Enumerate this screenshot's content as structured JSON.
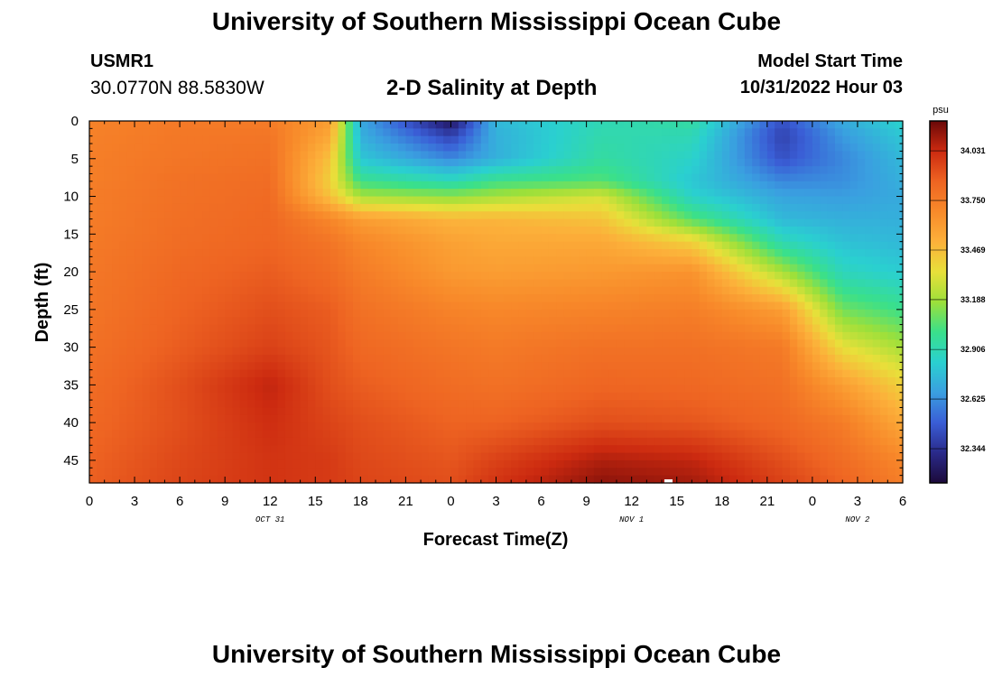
{
  "header": {
    "title": "University of Southern Mississippi Ocean Cube",
    "station": "USMR1",
    "coords": "30.0770N  88.5830W",
    "subtitle": "2-D Salinity at Depth",
    "start_label": "Model Start Time",
    "start_value": "10/31/2022 Hour 03"
  },
  "footer": {
    "title": "University of Southern Mississippi Ocean Cube"
  },
  "chart_data": {
    "type": "heatmap",
    "title": "2-D Salinity at Depth",
    "xlabel": "Forecast Time(Z)",
    "ylabel": "Depth (ft)",
    "x_tick_labels": [
      "0",
      "3",
      "6",
      "9",
      "12",
      "15",
      "18",
      "21",
      "0",
      "3",
      "6",
      "9",
      "12",
      "15",
      "18",
      "21",
      "0",
      "3",
      "6"
    ],
    "x_range_hours": [
      0,
      54
    ],
    "date_labels": [
      {
        "text": "OCT 31",
        "hour": 12
      },
      {
        "text": "NOV 1",
        "hour": 36
      },
      {
        "text": "NOV 2",
        "hour": 51
      }
    ],
    "y_ticks": [
      0,
      5,
      10,
      15,
      20,
      25,
      30,
      35,
      40,
      45
    ],
    "y_range": [
      0,
      48
    ],
    "y_inverted": true,
    "colorbar": {
      "unit": "psu",
      "ticks": [
        "34.031",
        "33.750",
        "33.469",
        "33.188",
        "32.906",
        "32.625",
        "32.344"
      ],
      "range": [
        32.15,
        34.2
      ],
      "colors": [
        "#1c0a3a",
        "#2a2a8a",
        "#3a5ed6",
        "#3a9fe0",
        "#2ad0d0",
        "#3ae08a",
        "#9de03a",
        "#e8e03a",
        "#fcb03a",
        "#f88a2a",
        "#ee6422",
        "#cc2a10",
        "#6a0808"
      ]
    },
    "salinity_grid": {
      "hours": [
        0,
        6,
        12,
        16,
        18,
        24,
        27,
        34,
        40,
        46,
        50,
        54
      ],
      "depths": [
        0,
        2,
        5,
        8,
        10,
        13,
        16,
        20,
        25,
        30,
        35,
        40,
        45,
        48
      ],
      "values": [
        [
          33.72,
          33.76,
          33.75,
          33.6,
          32.7,
          32.22,
          32.75,
          32.9,
          32.95,
          32.45,
          32.7,
          32.85
        ],
        [
          33.73,
          33.77,
          33.78,
          33.55,
          32.72,
          32.4,
          32.72,
          32.92,
          32.9,
          32.4,
          32.65,
          32.8
        ],
        [
          33.74,
          33.78,
          33.8,
          33.45,
          32.8,
          32.6,
          32.72,
          32.95,
          32.85,
          32.45,
          32.6,
          32.75
        ],
        [
          33.74,
          33.8,
          33.82,
          33.4,
          33.0,
          32.9,
          33.0,
          33.05,
          32.8,
          32.6,
          32.62,
          32.72
        ],
        [
          33.75,
          33.8,
          33.83,
          33.45,
          33.2,
          33.15,
          33.2,
          33.3,
          32.85,
          32.68,
          32.66,
          32.7
        ],
        [
          33.75,
          33.81,
          33.84,
          33.7,
          33.6,
          33.5,
          33.5,
          33.45,
          33.05,
          32.75,
          32.72,
          32.72
        ],
        [
          33.76,
          33.82,
          33.85,
          33.78,
          33.7,
          33.58,
          33.55,
          33.55,
          33.4,
          32.9,
          32.78,
          32.75
        ],
        [
          33.77,
          33.84,
          33.88,
          33.82,
          33.75,
          33.62,
          33.6,
          33.62,
          33.65,
          33.2,
          32.88,
          32.82
        ],
        [
          33.78,
          33.86,
          33.92,
          33.88,
          33.8,
          33.72,
          33.7,
          33.72,
          33.74,
          33.6,
          33.1,
          33.0
        ],
        [
          33.8,
          33.88,
          33.96,
          33.9,
          33.84,
          33.78,
          33.76,
          33.8,
          33.8,
          33.76,
          33.35,
          33.2
        ],
        [
          33.82,
          33.92,
          34.05,
          33.92,
          33.88,
          33.82,
          33.8,
          33.85,
          33.84,
          33.8,
          33.6,
          33.4
        ],
        [
          33.84,
          33.92,
          34.02,
          33.95,
          33.92,
          33.86,
          33.86,
          33.92,
          33.9,
          33.84,
          33.75,
          33.55
        ],
        [
          33.86,
          33.94,
          34.0,
          33.98,
          33.94,
          33.9,
          33.96,
          34.08,
          34.05,
          33.92,
          33.82,
          33.7
        ],
        [
          33.87,
          33.95,
          34.0,
          33.98,
          33.95,
          33.92,
          34.0,
          34.14,
          34.1,
          33.96,
          33.86,
          33.74
        ]
      ]
    }
  }
}
